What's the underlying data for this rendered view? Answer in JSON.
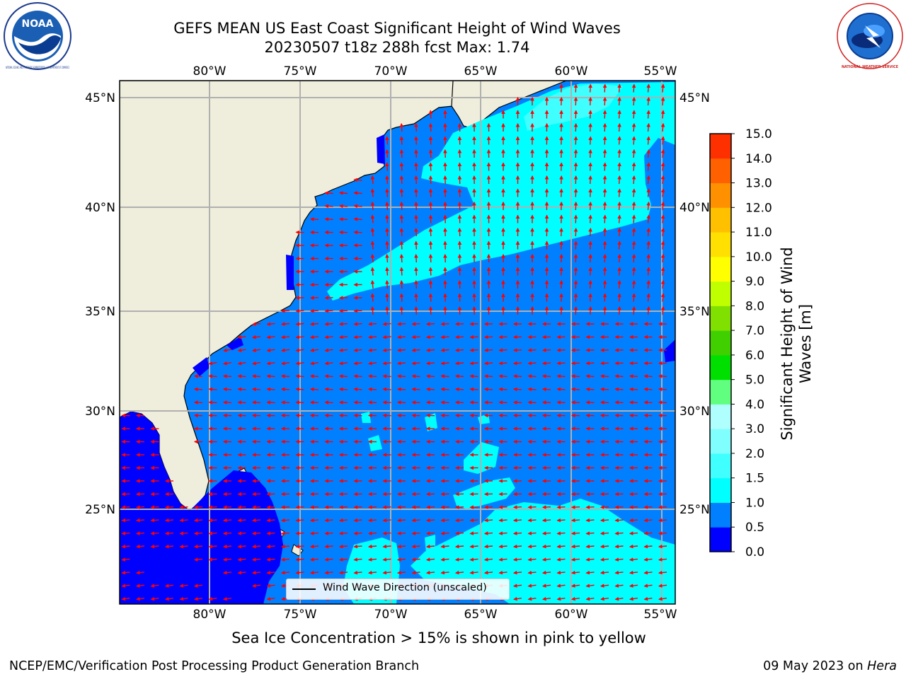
{
  "header": {
    "title_line1": "GEFS MEAN US East Coast Significant Height of Wind Waves",
    "title_line2": "20230507 t18z 288h fcst   Max: 1.74"
  },
  "logos": {
    "left": "NOAA",
    "left_ring_text": "NATIONAL OCEANIC AND ATMOSPHERIC ADMINISTRATION · U.S. DEPARTMENT OF COMMERCE",
    "right_ring_text": "NATIONAL WEATHER SERVICE"
  },
  "map": {
    "lon_ticks_top": [
      "80°W",
      "75°W",
      "70°W",
      "65°W",
      "60°W",
      "55°W"
    ],
    "lon_ticks_bottom": [
      "80°W",
      "75°W",
      "70°W",
      "65°W",
      "60°W",
      "55°W"
    ],
    "lat_ticks_left": [
      "45°N",
      "40°N",
      "35°N",
      "30°N",
      "25°N"
    ],
    "lat_ticks_right": [
      "45°N",
      "40°N",
      "35°N",
      "30°N",
      "25°N"
    ],
    "legend_label": "Wind Wave Direction (unscaled)",
    "colors": {
      "land": "#efeedc",
      "wave_0_0p5": "#0000ff",
      "wave_0p5_1": "#0080ff",
      "wave_1_1p5": "#00ffff",
      "wave_1p5_2": "#40ffff",
      "arrow": "#ff0000"
    }
  },
  "colorbar": {
    "title": "Significant Height of Wind Waves [m]",
    "ticks": [
      "0.0",
      "0.5",
      "1.0",
      "1.5",
      "2.0",
      "3.0",
      "4.0",
      "5.0",
      "6.0",
      "7.0",
      "8.0",
      "9.0",
      "10.0",
      "11.0",
      "12.0",
      "13.0",
      "14.0",
      "15.0"
    ],
    "colors": [
      "#0000ff",
      "#0080ff",
      "#00ffff",
      "#40ffff",
      "#80ffff",
      "#b0ffff",
      "#60ff80",
      "#00e000",
      "#40d000",
      "#80e000",
      "#c0ff00",
      "#ffff00",
      "#ffe000",
      "#ffc000",
      "#ff9000",
      "#ff6000",
      "#ff3000"
    ]
  },
  "notes": {
    "sea_ice": "Sea Ice Concentration > 15% is shown in pink to yellow",
    "footer_left": "NCEP/EMC/Verification Post Processing Product Generation Branch",
    "footer_date": "09 May 2023 on ",
    "footer_machine": "Hera"
  }
}
